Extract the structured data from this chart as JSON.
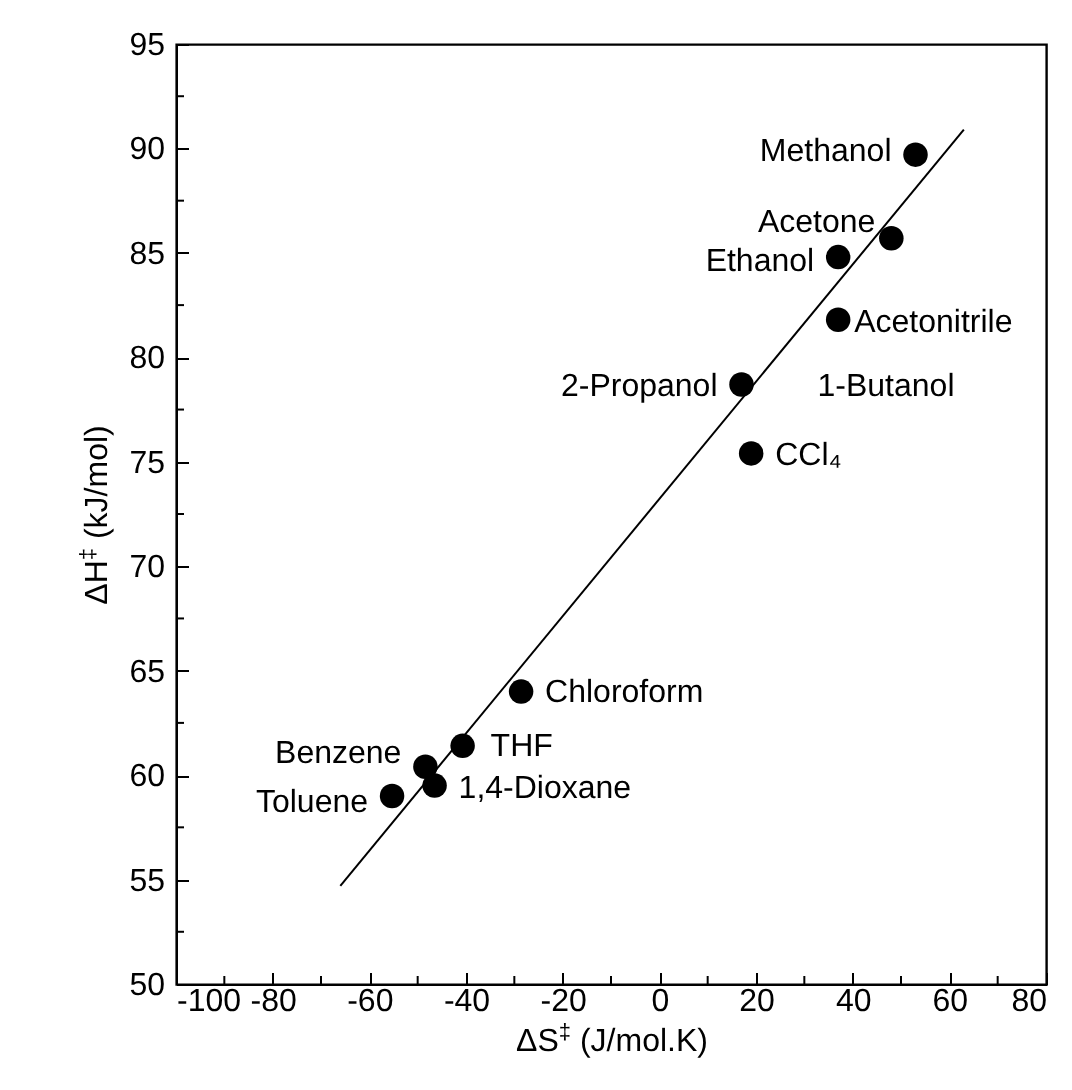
{
  "chart_data": {
    "type": "scatter",
    "xlabel": "ΔS$^{‡}$ (J/mol.K)",
    "ylabel": "ΔH$^{‡}$ (kJ/mol)",
    "xlim": [
      -100,
      80
    ],
    "ylim": [
      50,
      95
    ],
    "xticks": [
      -100,
      {
        "value": -90,
        "label": null
      },
      -80,
      {
        "value": -70,
        "label": null
      },
      -60,
      {
        "value": -50,
        "label": null
      },
      -40,
      {
        "value": -30,
        "label": null
      },
      -20,
      {
        "value": -10,
        "label": null
      },
      0,
      {
        "value": 10,
        "label": null
      },
      20,
      {
        "value": 30,
        "label": null
      },
      40,
      {
        "value": 50,
        "label": null
      },
      60,
      {
        "value": 70,
        "label": null
      },
      80
    ],
    "yticks": [
      50,
      {
        "value": 52.5,
        "label": null
      },
      55,
      {
        "value": 57.5,
        "label": null
      },
      60,
      {
        "value": 62.5,
        "label": null
      },
      65,
      {
        "value": 67.5,
        "label": null
      },
      70,
      {
        "value": 72.5,
        "label": null
      },
      75,
      {
        "value": 77.5,
        "label": null
      },
      80,
      {
        "value": 82.5,
        "label": null
      },
      85,
      {
        "value": 87.5,
        "label": null
      },
      90,
      {
        "value": 92.5,
        "label": null
      },
      95
    ],
    "grid": false,
    "series": [
      {
        "type": "scatter",
        "marker": "circle",
        "color": "#000000",
        "x": [
          53,
          48,
          37,
          37,
          17,
          19,
          -28.6,
          -40.7,
          -48.4,
          -46.5,
          -55.3
        ],
        "values": [
          89.7,
          85.7,
          84.8,
          81.8,
          78.7,
          75.4,
          64.0,
          61.4,
          60.4,
          59.5,
          59.0
        ]
      },
      {
        "type": "line",
        "color": "#000000",
        "x": [
          -66,
          63
        ],
        "values": [
          54.7,
          90.9
        ]
      }
    ],
    "annotations": [
      {
        "text": "Methanol",
        "x": 53,
        "y": 89.7
      },
      {
        "text": "Acetone",
        "x": 48,
        "y": 85.7
      },
      {
        "text": "Ethanol",
        "x": 37,
        "y": 84.8
      },
      {
        "text": "Acetonitrile",
        "x": 37,
        "y": 81.8
      },
      {
        "text": "2-Propanol",
        "x": 17,
        "y": 78.7
      },
      {
        "text": "1-Butanol",
        "x": 17,
        "y": 78.7
      },
      {
        "text": "CCl₄",
        "x": 19,
        "y": 75.4
      },
      {
        "text": "Chloroform",
        "x": -28.6,
        "y": 64.0
      },
      {
        "text": "THF",
        "x": -40.7,
        "y": 61.4
      },
      {
        "text": "Benzene",
        "x": -48.4,
        "y": 60.4
      },
      {
        "text": "1,4-Dioxane",
        "x": -46.5,
        "y": 59.5
      },
      {
        "text": "Toluene",
        "x": -55.3,
        "y": 59.0
      }
    ]
  }
}
